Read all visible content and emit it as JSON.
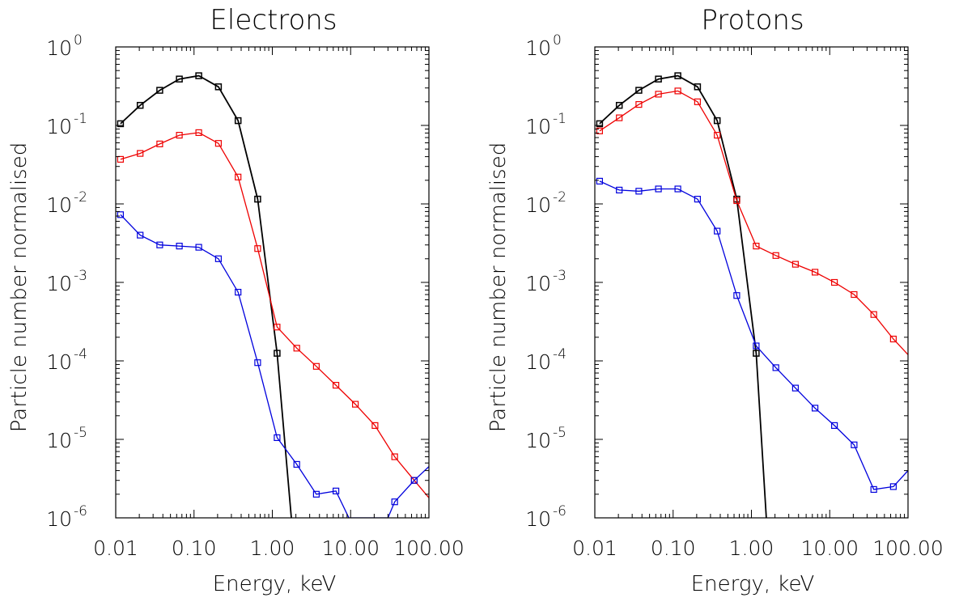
{
  "figure": {
    "colors": {
      "axes": "#000000",
      "black_series": "#000000",
      "red_series": "#ee0000",
      "blue_series": "#0000dd"
    }
  },
  "chart_data": [
    {
      "type": "line",
      "title": "Electrons",
      "xlabel": "Energy, keV",
      "ylabel": "Particle number normalised",
      "xscale": "log",
      "yscale": "log",
      "xlim": [
        0.01,
        100
      ],
      "ylim": [
        1e-06,
        1
      ],
      "xtick_values": [
        0.01,
        0.1,
        1,
        10,
        100
      ],
      "xtick_labels": [
        "0.01",
        "0.10",
        "1.00",
        "10.00",
        "100.00"
      ],
      "ytick_values": [
        1e-06,
        1e-05,
        0.0001,
        0.001,
        0.01,
        0.1,
        1
      ],
      "ytick_labels": [
        [
          "10",
          "-6"
        ],
        [
          "10",
          "-5"
        ],
        [
          "10",
          "-4"
        ],
        [
          "10",
          "-3"
        ],
        [
          "10",
          "-2"
        ],
        [
          "10",
          "-1"
        ],
        [
          "10",
          "0"
        ]
      ],
      "grid": false,
      "series": [
        {
          "color": "#000000",
          "x": [
            0.0115,
            0.0205,
            0.0365,
            0.065,
            0.115,
            0.205,
            0.365,
            0.65,
            1.15,
            1.75
          ],
          "y": [
            0.105,
            0.18,
            0.28,
            0.39,
            0.43,
            0.31,
            0.115,
            0.0115,
            0.000125,
            1e-06
          ],
          "markers": [
            true,
            true,
            true,
            true,
            true,
            true,
            true,
            true,
            true,
            false
          ]
        },
        {
          "color": "#ee0000",
          "x": [
            0.0115,
            0.0205,
            0.0365,
            0.065,
            0.115,
            0.205,
            0.365,
            0.65,
            1.15,
            2.05,
            3.65,
            6.5,
            11.5,
            20.5,
            36.5,
            65,
            100
          ],
          "y": [
            0.037,
            0.044,
            0.058,
            0.075,
            0.081,
            0.059,
            0.022,
            0.0027,
            0.00027,
            0.000145,
            8.5e-05,
            4.9e-05,
            2.8e-05,
            1.5e-05,
            6e-06,
            3e-06,
            1.8e-06
          ],
          "markers": [
            true,
            true,
            true,
            true,
            true,
            true,
            true,
            true,
            true,
            true,
            true,
            true,
            true,
            true,
            true,
            true,
            false
          ]
        },
        {
          "color": "#0000dd",
          "x": [
            0.0115,
            0.0205,
            0.0365,
            0.065,
            0.115,
            0.205,
            0.365,
            0.65,
            1.15,
            2.05,
            3.65,
            6.5,
            9.5,
            30,
            36.5,
            65,
            100
          ],
          "y": [
            0.0073,
            0.004,
            0.003,
            0.0029,
            0.0028,
            0.002,
            0.00075,
            9.5e-05,
            1.05e-05,
            4.8e-06,
            2e-06,
            2.2e-06,
            1e-06,
            1e-06,
            1.6e-06,
            3e-06,
            4.5e-06
          ],
          "markers": [
            true,
            true,
            true,
            true,
            true,
            true,
            true,
            true,
            true,
            true,
            true,
            true,
            false,
            false,
            true,
            true,
            false
          ]
        }
      ]
    },
    {
      "type": "line",
      "title": "Protons",
      "xlabel": "Energy, keV",
      "ylabel": "Particle number normalised",
      "xscale": "log",
      "yscale": "log",
      "xlim": [
        0.01,
        100
      ],
      "ylim": [
        1e-06,
        1
      ],
      "xtick_values": [
        0.01,
        0.1,
        1,
        10,
        100
      ],
      "xtick_labels": [
        "0.01",
        "0.10",
        "1.00",
        "10.00",
        "100.00"
      ],
      "ytick_values": [
        1e-06,
        1e-05,
        0.0001,
        0.001,
        0.01,
        0.1,
        1
      ],
      "ytick_labels": [
        [
          "10",
          "-6"
        ],
        [
          "10",
          "-5"
        ],
        [
          "10",
          "-4"
        ],
        [
          "10",
          "-3"
        ],
        [
          "10",
          "-2"
        ],
        [
          "10",
          "-1"
        ],
        [
          "10",
          "0"
        ]
      ],
      "grid": false,
      "series": [
        {
          "color": "#000000",
          "x": [
            0.0115,
            0.0205,
            0.0365,
            0.065,
            0.115,
            0.205,
            0.365,
            0.65,
            1.15,
            1.55
          ],
          "y": [
            0.105,
            0.18,
            0.28,
            0.39,
            0.43,
            0.31,
            0.115,
            0.0115,
            0.000125,
            1e-06
          ],
          "markers": [
            true,
            true,
            true,
            true,
            true,
            true,
            true,
            true,
            true,
            false
          ]
        },
        {
          "color": "#ee0000",
          "x": [
            0.0115,
            0.0205,
            0.0365,
            0.065,
            0.115,
            0.205,
            0.365,
            0.65,
            1.15,
            2.05,
            3.65,
            6.5,
            11.5,
            20.5,
            36.5,
            65,
            100
          ],
          "y": [
            0.085,
            0.125,
            0.185,
            0.25,
            0.275,
            0.2,
            0.075,
            0.011,
            0.0029,
            0.0022,
            0.0017,
            0.00135,
            0.001,
            0.0007,
            0.00039,
            0.00019,
            0.00012
          ],
          "markers": [
            true,
            true,
            true,
            true,
            true,
            true,
            true,
            true,
            true,
            true,
            true,
            true,
            true,
            true,
            true,
            true,
            false
          ]
        },
        {
          "color": "#0000dd",
          "x": [
            0.0115,
            0.0205,
            0.0365,
            0.065,
            0.115,
            0.205,
            0.365,
            0.65,
            1.15,
            2.05,
            3.65,
            6.5,
            11.5,
            20.5,
            36.5,
            65,
            100
          ],
          "y": [
            0.0195,
            0.015,
            0.0145,
            0.0155,
            0.0155,
            0.0115,
            0.0045,
            0.00068,
            0.000155,
            8.2e-05,
            4.5e-05,
            2.5e-05,
            1.5e-05,
            8.5e-06,
            2.3e-06,
            2.5e-06,
            4e-06
          ],
          "markers": [
            true,
            true,
            true,
            true,
            true,
            true,
            true,
            true,
            true,
            true,
            true,
            true,
            true,
            true,
            true,
            true,
            false
          ]
        }
      ]
    }
  ]
}
